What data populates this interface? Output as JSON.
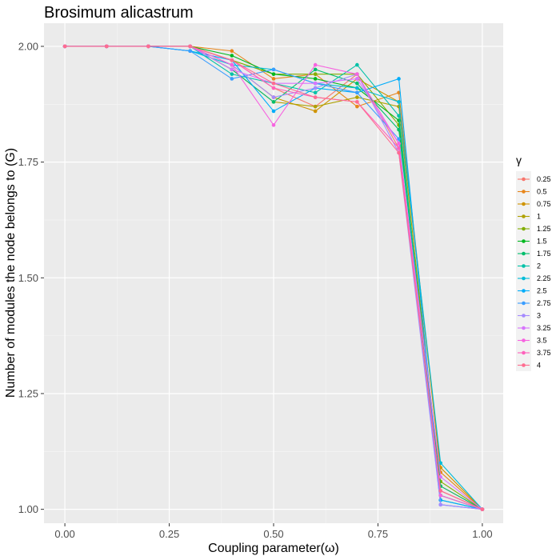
{
  "chart_data": {
    "type": "line",
    "title": "Brosimum alicastrum",
    "xlabel": "Coupling parameter(ω)",
    "ylabel": "Number of modules the node belongs to (G)",
    "xlim": [
      -0.05,
      1.05
    ],
    "ylim": [
      0.97,
      2.05
    ],
    "x_ticks": [
      0,
      0.25,
      0.5,
      0.75,
      1
    ],
    "x_tick_labels": [
      "0.00",
      "0.25",
      "0.50",
      "0.75",
      "1.00"
    ],
    "y_ticks": [
      1,
      1.25,
      1.5,
      1.75,
      2
    ],
    "y_tick_labels": [
      "1.00",
      "1.25",
      "1.50",
      "1.75",
      "2.00"
    ],
    "grid": true,
    "legend_title": "γ",
    "legend_position": "right",
    "x": [
      0,
      0.1,
      0.2,
      0.3,
      0.4,
      0.5,
      0.6,
      0.7,
      0.8,
      0.9,
      1.0
    ],
    "series": [
      {
        "name": "0.25",
        "color": "#F8766D",
        "values": [
          2.0,
          2.0,
          2.0,
          2.0,
          1.97,
          1.91,
          1.87,
          1.94,
          1.78,
          1.05,
          1.0
        ]
      },
      {
        "name": "0.5",
        "color": "#E7861B",
        "values": [
          2.0,
          2.0,
          2.0,
          2.0,
          1.99,
          1.93,
          1.94,
          1.87,
          1.9,
          1.08,
          1.0
        ]
      },
      {
        "name": "0.75",
        "color": "#CF9400",
        "values": [
          2.0,
          2.0,
          2.0,
          2.0,
          1.96,
          1.89,
          1.86,
          1.93,
          1.88,
          1.09,
          1.0
        ]
      },
      {
        "name": "1",
        "color": "#AFA100",
        "values": [
          2.0,
          2.0,
          2.0,
          2.0,
          1.95,
          1.88,
          1.87,
          1.89,
          1.87,
          1.04,
          1.0
        ]
      },
      {
        "name": "1.25",
        "color": "#81AD00",
        "values": [
          2.0,
          2.0,
          2.0,
          2.0,
          1.97,
          1.94,
          1.94,
          1.94,
          1.83,
          1.06,
          1.0
        ]
      },
      {
        "name": "1.5",
        "color": "#00B81F",
        "values": [
          2.0,
          2.0,
          2.0,
          2.0,
          1.98,
          1.94,
          1.93,
          1.91,
          1.84,
          1.03,
          1.0
        ]
      },
      {
        "name": "1.75",
        "color": "#00BE6C",
        "values": [
          2.0,
          2.0,
          2.0,
          2.0,
          1.95,
          1.88,
          1.95,
          1.92,
          1.82,
          1.05,
          1.0
        ]
      },
      {
        "name": "2",
        "color": "#00C1A7",
        "values": [
          2.0,
          2.0,
          2.0,
          2.0,
          1.94,
          1.92,
          1.9,
          1.96,
          1.85,
          1.02,
          1.0
        ]
      },
      {
        "name": "2.25",
        "color": "#00BCD8",
        "values": [
          2.0,
          2.0,
          2.0,
          1.99,
          1.96,
          1.95,
          1.92,
          1.91,
          1.88,
          1.1,
          1.0
        ]
      },
      {
        "name": "2.5",
        "color": "#00ADFA",
        "values": [
          2.0,
          2.0,
          2.0,
          1.99,
          1.97,
          1.86,
          1.91,
          1.9,
          1.93,
          1.02,
          1.0
        ]
      },
      {
        "name": "2.75",
        "color": "#3A9DFF",
        "values": [
          2.0,
          2.0,
          2.0,
          1.99,
          1.93,
          1.95,
          1.92,
          1.9,
          1.8,
          1.01,
          1.0
        ]
      },
      {
        "name": "3",
        "color": "#A58AFF",
        "values": [
          2.0,
          2.0,
          2.0,
          2.0,
          1.96,
          1.89,
          1.91,
          1.94,
          1.77,
          1.01,
          1.0
        ]
      },
      {
        "name": "3.25",
        "color": "#D874FD",
        "values": [
          2.0,
          2.0,
          2.0,
          2.0,
          1.95,
          1.92,
          1.92,
          1.93,
          1.79,
          1.07,
          1.0
        ]
      },
      {
        "name": "3.5",
        "color": "#F763E0",
        "values": [
          2.0,
          2.0,
          2.0,
          2.0,
          1.96,
          1.83,
          1.96,
          1.94,
          1.79,
          1.03,
          1.0
        ]
      },
      {
        "name": "3.75",
        "color": "#FF62BC",
        "values": [
          2.0,
          2.0,
          2.0,
          2.0,
          1.97,
          1.91,
          1.89,
          1.88,
          1.78,
          1.04,
          1.0
        ]
      },
      {
        "name": "4",
        "color": "#FF6C90",
        "values": [
          2.0,
          2.0,
          2.0,
          2.0,
          1.97,
          1.92,
          1.89,
          1.88,
          1.77,
          1.04,
          1.0
        ]
      }
    ]
  }
}
